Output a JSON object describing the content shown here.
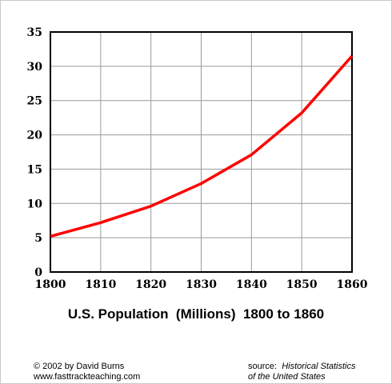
{
  "chart_data": {
    "type": "line",
    "title": "U.S. Population  (Millions)  1800 to 1860",
    "xlabel": "",
    "ylabel": "",
    "x": [
      1800,
      1810,
      1820,
      1830,
      1840,
      1850,
      1860
    ],
    "series": [
      {
        "values": [
          5.2,
          7.2,
          9.6,
          12.9,
          17.1,
          23.2,
          31.5
        ]
      }
    ],
    "xlim": [
      1800,
      1860
    ],
    "ylim": [
      0,
      35
    ],
    "xticks": [
      "1800",
      "1810",
      "1820",
      "1830",
      "1840",
      "1850",
      "1860"
    ],
    "yticks": [
      "0",
      "5",
      "10",
      "15",
      "20",
      "25",
      "30",
      "35"
    ],
    "grid": true,
    "line_color": "#ff0000"
  },
  "footer": {
    "copyright": "© 2002 by David Burns",
    "website": "www.fasttrackteaching.com",
    "source_prefix": "source:",
    "source_title_line1": "Historical Statistics",
    "source_title_line2": "of the United States"
  }
}
